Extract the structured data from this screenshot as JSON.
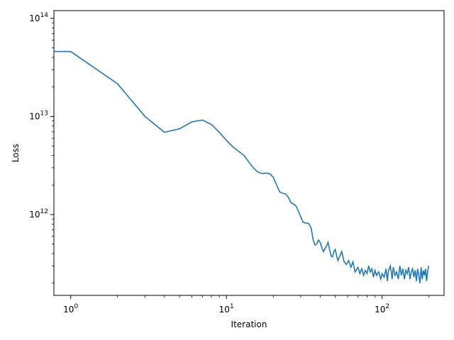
{
  "chart_data": {
    "type": "line",
    "title": "",
    "xlabel": "Iteration",
    "ylabel": "Loss",
    "xscale": "log",
    "yscale": "log",
    "xlim": [
      0.78,
      250
    ],
    "ylim": [
      150000000000.0,
      120000000000000.0
    ],
    "grid": false,
    "legend": "none",
    "line_color": "#1f77b4",
    "x_ticks": [
      {
        "value": 1,
        "base": "10",
        "exp": "0"
      },
      {
        "value": 10,
        "base": "10",
        "exp": "1"
      },
      {
        "value": 100,
        "base": "10",
        "exp": "2"
      }
    ],
    "y_ticks": [
      {
        "value": 1000000000000.0,
        "base": "10",
        "exp": "12"
      },
      {
        "value": 10000000000000.0,
        "base": "10",
        "exp": "13"
      },
      {
        "value": 100000000000000.0,
        "base": "10",
        "exp": "14"
      }
    ],
    "series": [
      {
        "values_coarse": [
          [
            0.78,
            46000000000000.0
          ],
          [
            1,
            46000000000000.0
          ],
          [
            2,
            21500000000000.0
          ],
          [
            3,
            10000000000000.0
          ],
          [
            4,
            6900000000000.0
          ],
          [
            5,
            7500000000000.0
          ],
          [
            6,
            8800000000000.0
          ],
          [
            7,
            9200000000000.0
          ],
          [
            8,
            8300000000000.0
          ],
          [
            9,
            6900000000000.0
          ],
          [
            10,
            5700000000000.0
          ],
          [
            11,
            4900000000000.0
          ],
          [
            13,
            4000000000000.0
          ],
          [
            14,
            3400000000000.0
          ],
          [
            15,
            2950000000000.0
          ],
          [
            16,
            2700000000000.0
          ],
          [
            17,
            2620000000000.0
          ],
          [
            18,
            2650000000000.0
          ],
          [
            19,
            2600000000000.0
          ],
          [
            20,
            2400000000000.0
          ],
          [
            21,
            2000000000000.0
          ],
          [
            22,
            1700000000000.0
          ],
          [
            23,
            1650000000000.0
          ],
          [
            24,
            1620000000000.0
          ],
          [
            25,
            1500000000000.0
          ],
          [
            26,
            1320000000000.0
          ],
          [
            27,
            1280000000000.0
          ],
          [
            28,
            1220000000000.0
          ],
          [
            29,
            1080000000000.0
          ],
          [
            30,
            950000000000.0
          ],
          [
            31,
            840000000000.0
          ],
          [
            32,
            820000000000.0
          ],
          [
            33,
            820000000000.0
          ],
          [
            34,
            800000000000.0
          ],
          [
            35,
            730000000000.0
          ],
          [
            36,
            560000000000.0
          ],
          [
            37,
            490000000000.0
          ],
          [
            38,
            500000000000.0
          ],
          [
            39,
            550000000000.0
          ],
          [
            40,
            520000000000.0
          ],
          [
            41,
            460000000000.0
          ],
          [
            42,
            420000000000.0
          ],
          [
            44,
            480000000000.0
          ],
          [
            45,
            520000000000.0
          ],
          [
            46,
            440000000000.0
          ],
          [
            47,
            380000000000.0
          ],
          [
            48,
            370000000000.0
          ],
          [
            49,
            420000000000.0
          ],
          [
            50,
            440000000000.0
          ],
          [
            51,
            380000000000.0
          ],
          [
            52,
            340000000000.0
          ],
          [
            54,
            390000000000.0
          ],
          [
            55,
            420000000000.0
          ],
          [
            57,
            330000000000.0
          ],
          [
            59,
            310000000000.0
          ],
          [
            61,
            340000000000.0
          ],
          [
            63,
            290000000000.0
          ],
          [
            65,
            330000000000.0
          ],
          [
            67,
            260000000000.0
          ],
          [
            70,
            290000000000.0
          ],
          [
            72,
            250000000000.0
          ],
          [
            74,
            280000000000.0
          ],
          [
            76,
            240000000000.0
          ],
          [
            78,
            270000000000.0
          ],
          [
            80,
            250000000000.0
          ],
          [
            82,
            300000000000.0
          ],
          [
            84,
            260000000000.0
          ],
          [
            86,
            280000000000.0
          ],
          [
            88,
            230000000000.0
          ],
          [
            90,
            270000000000.0
          ],
          [
            92,
            240000000000.0
          ],
          [
            95,
            260000000000.0
          ],
          [
            98,
            220000000000.0
          ],
          [
            100,
            250000000000.0
          ],
          [
            103,
            230000000000.0
          ],
          [
            106,
            280000000000.0
          ],
          [
            108,
            210000000000.0
          ],
          [
            110,
            270000000000.0
          ],
          [
            113,
            300000000000.0
          ],
          [
            116,
            220000000000.0
          ],
          [
            118,
            290000000000.0
          ],
          [
            121,
            240000000000.0
          ],
          [
            124,
            260000000000.0
          ],
          [
            127,
            220000000000.0
          ],
          [
            130,
            300000000000.0
          ],
          [
            133,
            240000000000.0
          ],
          [
            136,
            280000000000.0
          ],
          [
            139,
            220000000000.0
          ],
          [
            142,
            270000000000.0
          ],
          [
            145,
            250000000000.0
          ],
          [
            148,
            290000000000.0
          ],
          [
            151,
            220000000000.0
          ],
          [
            154,
            260000000000.0
          ],
          [
            157,
            280000000000.0
          ],
          [
            160,
            230000000000.0
          ],
          [
            163,
            270000000000.0
          ],
          [
            166,
            210000000000.0
          ],
          [
            169,
            280000000000.0
          ],
          [
            172,
            240000000000.0
          ],
          [
            175,
            200000000000.0
          ],
          [
            178,
            290000000000.0
          ],
          [
            181,
            220000000000.0
          ],
          [
            184,
            270000000000.0
          ],
          [
            187,
            240000000000.0
          ],
          [
            190,
            280000000000.0
          ],
          [
            193,
            210000000000.0
          ],
          [
            196,
            260000000000.0
          ],
          [
            199,
            300000000000.0
          ]
        ]
      }
    ]
  }
}
